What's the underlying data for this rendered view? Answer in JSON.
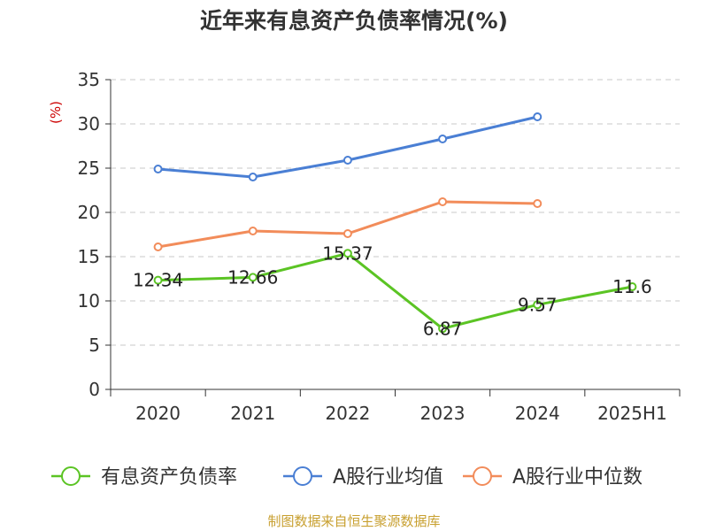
{
  "chart_data": {
    "type": "line",
    "title": "近年来有息资产负债率情况(%)",
    "ylabel": "(%)",
    "xlabel": "",
    "categories": [
      "2020",
      "2021",
      "2022",
      "2023",
      "2024",
      "2025H1"
    ],
    "ylim": [
      0,
      35
    ],
    "yticks": [
      "0",
      "5",
      "10",
      "15",
      "20",
      "25",
      "30",
      "35"
    ],
    "grid": true,
    "legend_position": "bottom",
    "series": [
      {
        "name": "有息资产负债率",
        "color": "#5bc424",
        "values": [
          12.34,
          12.66,
          15.37,
          6.87,
          9.57,
          11.6
        ],
        "labels": [
          "12.34",
          "12.66",
          "15.37",
          "6.87",
          "9.57",
          "11.6"
        ]
      },
      {
        "name": "A股行业均值",
        "color": "#4a7fd4",
        "values": [
          24.9,
          24.0,
          25.9,
          28.3,
          30.8,
          null
        ]
      },
      {
        "name": "A股行业中位数",
        "color": "#f28c5a",
        "values": [
          16.1,
          17.9,
          17.6,
          21.2,
          21.0,
          null
        ]
      }
    ],
    "source": "制图数据来自恒生聚源数据库"
  }
}
